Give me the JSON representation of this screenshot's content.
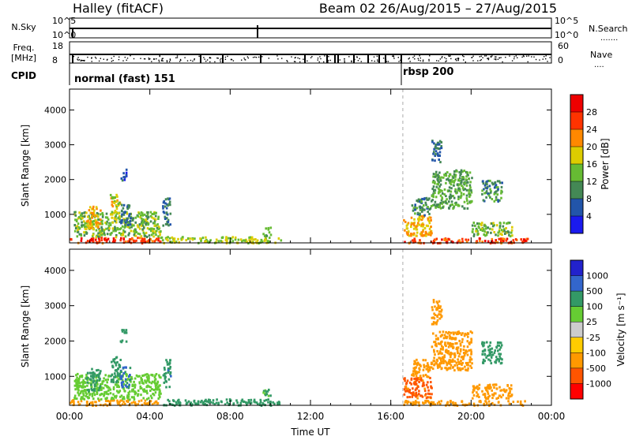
{
  "header": {
    "station": "Halley (fitACF)",
    "beam_info": "Beam 02 26/Aug/2015 – 27/Aug/2015"
  },
  "strip_labels": {
    "nsky": "N.Sky",
    "nsky_top": "10^5",
    "nsky_bottom": "10^0",
    "nsearch": "N.Search",
    "nsearch_top": "10^5",
    "nsearch_bottom": "10^0",
    "freq_line1": "Freq.",
    "freq_line2": "[MHz]",
    "freq_top": "18",
    "freq_bottom": "8",
    "nave": "Nave",
    "nave_top": "60",
    "nave_bottom": "0",
    "cpid": "CPID",
    "mode1": "normal (fast) 151",
    "mode2": "rbsp 200"
  },
  "colors": {
    "velocity_scale": [
      "#ff0000",
      "#ff5500",
      "#ff9900",
      "#ffcc00",
      "#cccccc",
      "#66cc33",
      "#339966",
      "#3366cc",
      "#2222cc"
    ]
  },
  "chart_data": [
    {
      "type": "heatmap",
      "title": "",
      "xlabel": "",
      "ylabel": "Slant Range [km]",
      "xlim": [
        0,
        24
      ],
      "ylim": [
        180,
        4600
      ],
      "x_ticks": [
        0,
        4,
        8,
        12,
        16,
        20,
        24
      ],
      "y_ticks": [
        1000,
        2000,
        3000,
        4000
      ],
      "y_tick_labels": [
        "1000",
        "2000",
        "3000",
        "4000"
      ],
      "mode_change_hour": 16.6,
      "colorbar": {
        "label": "Power [dB]",
        "tick_labels": [
          "4",
          "8",
          "12",
          "16",
          "20",
          "24",
          "28"
        ],
        "colors": [
          "#1a1aee",
          "#2255aa",
          "#448855",
          "#66bb33",
          "#ddcc00",
          "#ff8800",
          "#ff3300",
          "#ee0000"
        ]
      },
      "regions": [
        {
          "t": [
            0.0,
            4.5
          ],
          "r": [
            200,
            360
          ],
          "value": 26
        },
        {
          "t": [
            0.2,
            4.5
          ],
          "r": [
            370,
            1100
          ],
          "value": 14
        },
        {
          "t": [
            0.8,
            1.5
          ],
          "r": [
            600,
            1250
          ],
          "value": 20
        },
        {
          "t": [
            2.0,
            2.5
          ],
          "r": [
            850,
            1600
          ],
          "value": 18
        },
        {
          "t": [
            2.5,
            3.0
          ],
          "r": [
            700,
            1300
          ],
          "value": 8
        },
        {
          "t": [
            2.5,
            2.8
          ],
          "r": [
            2000,
            2350
          ],
          "value": 6
        },
        {
          "t": [
            4.6,
            5.0
          ],
          "r": [
            700,
            1500
          ],
          "value": 8
        },
        {
          "t": [
            4.5,
            10.5
          ],
          "r": [
            200,
            380
          ],
          "value": 16
        },
        {
          "t": [
            9.6,
            10.0
          ],
          "r": [
            400,
            650
          ],
          "value": 12
        },
        {
          "t": [
            16.6,
            22.8
          ],
          "r": [
            200,
            340
          ],
          "value": 26
        },
        {
          "t": [
            16.6,
            18.0
          ],
          "r": [
            400,
            1000
          ],
          "value": 20
        },
        {
          "t": [
            17.0,
            18.0
          ],
          "r": [
            1000,
            1500
          ],
          "value": 10
        },
        {
          "t": [
            18.0,
            20.0
          ],
          "r": [
            1200,
            2300
          ],
          "value": 12
        },
        {
          "t": [
            18.0,
            18.5
          ],
          "r": [
            2500,
            3200
          ],
          "value": 8
        },
        {
          "t": [
            20.5,
            21.5
          ],
          "r": [
            1400,
            2000
          ],
          "value": 10
        },
        {
          "t": [
            20.0,
            22.0
          ],
          "r": [
            400,
            800
          ],
          "value": 14
        }
      ]
    },
    {
      "type": "heatmap",
      "title": "",
      "xlabel": "Time UT",
      "ylabel": "Slant Range [km]",
      "xlim": [
        0,
        24
      ],
      "ylim": [
        180,
        4600
      ],
      "x_ticks": [
        0,
        4,
        8,
        12,
        16,
        20,
        24
      ],
      "x_tick_labels": [
        "00:00",
        "04:00",
        "08:00",
        "12:00",
        "16:00",
        "20:00",
        "00:00"
      ],
      "y_ticks": [
        1000,
        2000,
        3000,
        4000
      ],
      "y_tick_labels": [
        "1000",
        "2000",
        "3000",
        "4000"
      ],
      "mode_change_hour": 16.6,
      "colorbar": {
        "label": "Velocity [m s⁻¹]",
        "tick_labels": [
          "-1000",
          "-500",
          "-100",
          "-25",
          "25",
          "100",
          "500",
          "1000"
        ]
      },
      "regions": [
        {
          "t": [
            0.0,
            4.5
          ],
          "r": [
            200,
            360
          ],
          "value": -150
        },
        {
          "t": [
            0.2,
            4.5
          ],
          "r": [
            370,
            1100
          ],
          "value": 40
        },
        {
          "t": [
            0.8,
            1.5
          ],
          "r": [
            600,
            1250
          ],
          "value": 300
        },
        {
          "t": [
            2.0,
            2.5
          ],
          "r": [
            850,
            1600
          ],
          "value": 200
        },
        {
          "t": [
            2.5,
            3.0
          ],
          "r": [
            700,
            1300
          ],
          "value": 600
        },
        {
          "t": [
            2.5,
            2.8
          ],
          "r": [
            2000,
            2350
          ],
          "value": 150
        },
        {
          "t": [
            4.6,
            5.0
          ],
          "r": [
            700,
            1500
          ],
          "value": 400
        },
        {
          "t": [
            4.5,
            10.5
          ],
          "r": [
            200,
            380
          ],
          "value": 150
        },
        {
          "t": [
            9.6,
            10.0
          ],
          "r": [
            400,
            650
          ],
          "value": 100
        },
        {
          "t": [
            16.6,
            22.8
          ],
          "r": [
            200,
            340
          ],
          "value": -300
        },
        {
          "t": [
            16.6,
            18.0
          ],
          "r": [
            400,
            1000
          ],
          "value": -600
        },
        {
          "t": [
            17.0,
            18.0
          ],
          "r": [
            1000,
            1500
          ],
          "value": -200
        },
        {
          "t": [
            18.0,
            20.0
          ],
          "r": [
            1200,
            2300
          ],
          "value": -150
        },
        {
          "t": [
            18.0,
            18.5
          ],
          "r": [
            2500,
            3200
          ],
          "value": -150
        },
        {
          "t": [
            20.5,
            21.5
          ],
          "r": [
            1400,
            2000
          ],
          "value": 150
        },
        {
          "t": [
            20.0,
            22.0
          ],
          "r": [
            400,
            800
          ],
          "value": -150
        }
      ]
    }
  ]
}
